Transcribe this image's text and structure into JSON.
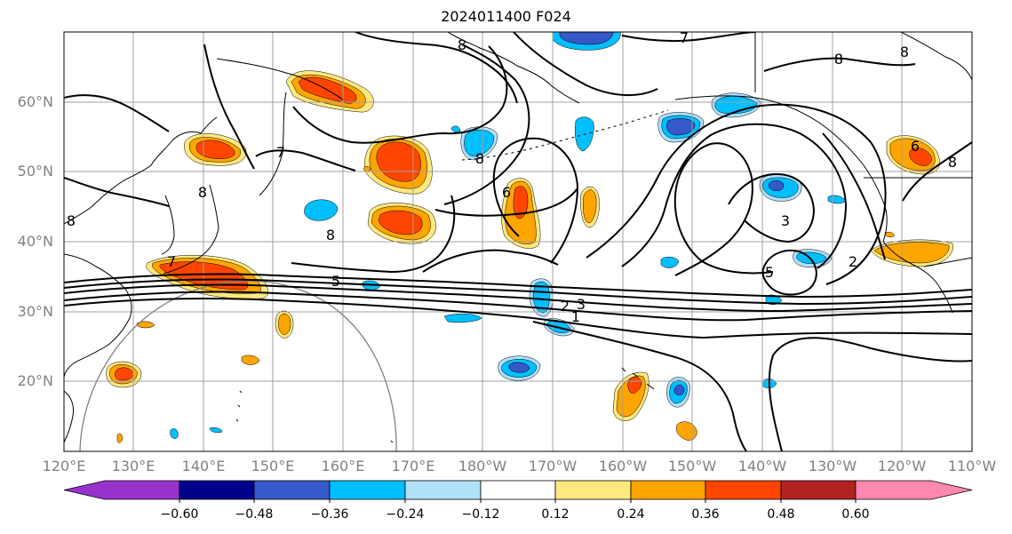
{
  "title": "2024011400 F024",
  "lat_labels": [
    "60°N",
    "50°N",
    "40°N",
    "30°N",
    "20°N"
  ],
  "lon_labels": [
    "120°E",
    "130°E",
    "140°E",
    "150°E",
    "160°E",
    "170°E",
    "180°W",
    "170°W",
    "160°W",
    "150°W",
    "140°W",
    "130°W",
    "120°W",
    "110°W"
  ],
  "contour_labels": [
    "7",
    "8",
    "7",
    "6",
    "3",
    "5",
    "2",
    "1",
    "3",
    "2",
    "5",
    "8",
    "8",
    "7",
    "8",
    "8",
    "8",
    "8",
    "6",
    "8"
  ],
  "colorbar": {
    "ticks": [
      "−0.60",
      "−0.48",
      "−0.36",
      "−0.24",
      "−0.12",
      "0.12",
      "0.24",
      "0.36",
      "0.48",
      "0.60"
    ],
    "colors": [
      "#9932cc",
      "#00008b",
      "#3658c8",
      "#00bfff",
      "#b0e0fa",
      "#ffffff",
      "#ffe97f",
      "#ffa500",
      "#ff4500",
      "#b22222",
      "#ff88b0"
    ]
  }
}
